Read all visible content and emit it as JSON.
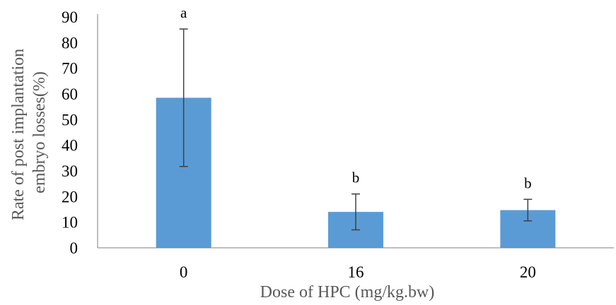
{
  "chart_data": {
    "type": "bar",
    "categories": [
      "0",
      "16",
      "20"
    ],
    "values": [
      58.5,
      14,
      14.7
    ],
    "errors": [
      26.8,
      7,
      4.2
    ],
    "significance_letters": [
      "a",
      "b",
      "b"
    ],
    "xlabel": "Dose of HPC (mg/kg.bw)",
    "ylabel_lines": [
      "Rate of post implantation",
      "embryo losses(%)"
    ],
    "ylim": [
      0,
      90
    ],
    "ytick_step": 10,
    "grid": false,
    "legend": "none",
    "bar_color": "#5b9bd5",
    "error_color": "#404040"
  }
}
